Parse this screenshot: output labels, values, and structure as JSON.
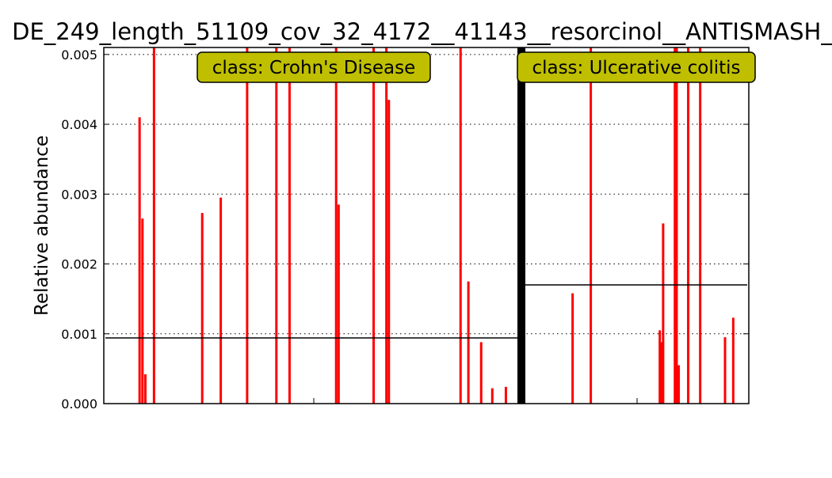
{
  "chart_data": {
    "type": "bar",
    "title": "DE_249_length_51109_cov_32_4172__41143__resorcinol__ANTISMASH_",
    "ylabel": "Relative abundance",
    "xlabel": "",
    "ylim": [
      0,
      0.0051
    ],
    "yticks": [
      "0.000",
      "0.001",
      "0.002",
      "0.003",
      "0.004",
      "0.005"
    ],
    "grid": "y-dotted",
    "panels": [
      {
        "label": "class: Crohn's Disease",
        "mean": 0.00094,
        "bars": [
          {
            "x": 0.083,
            "value": 0.0041
          },
          {
            "x": 0.09,
            "value": 0.00265
          },
          {
            "x": 0.097,
            "value": 0.00042
          },
          {
            "x": 0.118,
            "value": 0.0051
          },
          {
            "x": 0.235,
            "value": 0.00273
          },
          {
            "x": 0.28,
            "value": 0.00295
          },
          {
            "x": 0.344,
            "value": 0.0051
          },
          {
            "x": 0.415,
            "value": 0.0051
          },
          {
            "x": 0.447,
            "value": 0.0051
          },
          {
            "x": 0.56,
            "value": 0.0051
          },
          {
            "x": 0.566,
            "value": 0.00285
          },
          {
            "x": 0.651,
            "value": 0.0051
          },
          {
            "x": 0.682,
            "value": 0.0051
          },
          {
            "x": 0.688,
            "value": 0.00435
          },
          {
            "x": 0.862,
            "value": 0.0051
          },
          {
            "x": 0.881,
            "value": 0.00175
          },
          {
            "x": 0.912,
            "value": 0.00088
          },
          {
            "x": 0.939,
            "value": 0.00022
          },
          {
            "x": 0.972,
            "value": 0.00024
          }
        ]
      },
      {
        "label": "class: Ulcerative colitis",
        "mean": 0.0017,
        "bars": [
          {
            "x": 0.213,
            "value": 0.00158
          },
          {
            "x": 0.295,
            "value": 0.0051
          },
          {
            "x": 0.606,
            "value": 0.00105
          },
          {
            "x": 0.614,
            "value": 0.00088
          },
          {
            "x": 0.621,
            "value": 0.00258
          },
          {
            "x": 0.674,
            "value": 0.0051
          },
          {
            "x": 0.682,
            "value": 0.0051
          },
          {
            "x": 0.691,
            "value": 0.00055
          },
          {
            "x": 0.734,
            "value": 0.0051
          },
          {
            "x": 0.788,
            "value": 0.0051
          },
          {
            "x": 0.9,
            "value": 0.00095
          },
          {
            "x": 0.937,
            "value": 0.00123
          }
        ]
      }
    ]
  }
}
